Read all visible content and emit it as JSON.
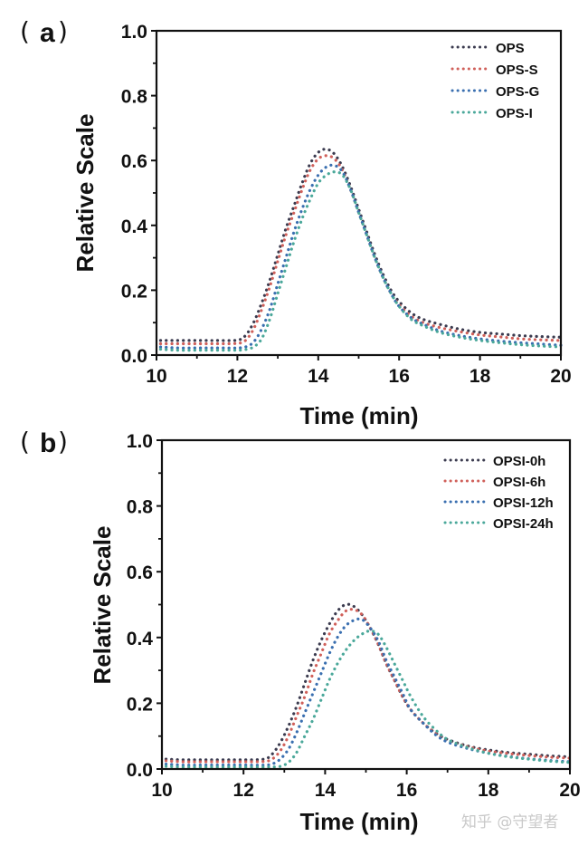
{
  "chart_data": [
    {
      "id": "a",
      "type": "line",
      "panel_label": "a",
      "title": "",
      "xlabel": "Time (min)",
      "ylabel": "Relative Scale",
      "xlim": [
        10,
        20
      ],
      "ylim": [
        0,
        1.0
      ],
      "xticks": [
        10,
        12,
        14,
        16,
        18,
        20
      ],
      "xtick_labels": [
        "10",
        "12",
        "14",
        "16",
        "18",
        "20"
      ],
      "yticks": [
        0,
        0.2,
        0.4,
        0.6,
        0.8,
        1.0
      ],
      "ytick_labels": [
        "0.0",
        "0.2",
        "0.4",
        "0.6",
        "0.8",
        "1.0"
      ],
      "grid": false,
      "legend_position": "top-right",
      "line_style": "dotted",
      "x": [
        10.1,
        10.5,
        11.0,
        11.5,
        12.0,
        12.2,
        12.4,
        12.6,
        12.8,
        13.0,
        13.2,
        13.4,
        13.6,
        13.8,
        14.0,
        14.2,
        14.4,
        14.6,
        14.8,
        15.0,
        15.2,
        15.4,
        15.6,
        15.8,
        16.0,
        16.3,
        16.6,
        17.0,
        17.5,
        18.0,
        18.5,
        19.0,
        19.5,
        20.0
      ],
      "series": [
        {
          "name": "OPS",
          "color": "#3b3b4f",
          "values": [
            0.045,
            0.045,
            0.045,
            0.045,
            0.046,
            0.06,
            0.1,
            0.16,
            0.23,
            0.31,
            0.39,
            0.46,
            0.53,
            0.59,
            0.625,
            0.635,
            0.62,
            0.58,
            0.52,
            0.45,
            0.38,
            0.31,
            0.25,
            0.2,
            0.165,
            0.13,
            0.11,
            0.095,
            0.08,
            0.07,
            0.065,
            0.06,
            0.057,
            0.055
          ]
        },
        {
          "name": "OPS-S",
          "color": "#d0605a",
          "values": [
            0.035,
            0.035,
            0.035,
            0.035,
            0.036,
            0.045,
            0.08,
            0.14,
            0.21,
            0.29,
            0.37,
            0.44,
            0.51,
            0.57,
            0.605,
            0.615,
            0.605,
            0.57,
            0.51,
            0.44,
            0.37,
            0.3,
            0.24,
            0.19,
            0.155,
            0.12,
            0.1,
            0.085,
            0.072,
            0.062,
            0.056,
            0.05,
            0.047,
            0.045
          ]
        },
        {
          "name": "OPS-G",
          "color": "#3a6fb0",
          "values": [
            0.025,
            0.022,
            0.022,
            0.022,
            0.022,
            0.025,
            0.04,
            0.08,
            0.14,
            0.22,
            0.3,
            0.38,
            0.45,
            0.51,
            0.555,
            0.58,
            0.585,
            0.565,
            0.51,
            0.44,
            0.37,
            0.3,
            0.24,
            0.19,
            0.15,
            0.115,
            0.095,
            0.075,
            0.06,
            0.05,
            0.043,
            0.038,
            0.034,
            0.03
          ]
        },
        {
          "name": "OPS-I",
          "color": "#4aa89a",
          "values": [
            0.018,
            0.015,
            0.015,
            0.015,
            0.015,
            0.017,
            0.025,
            0.05,
            0.11,
            0.19,
            0.27,
            0.35,
            0.42,
            0.48,
            0.53,
            0.555,
            0.565,
            0.555,
            0.51,
            0.44,
            0.37,
            0.3,
            0.24,
            0.19,
            0.15,
            0.11,
            0.09,
            0.07,
            0.055,
            0.045,
            0.038,
            0.032,
            0.028,
            0.025
          ]
        }
      ]
    },
    {
      "id": "b",
      "type": "line",
      "panel_label": "b",
      "title": "",
      "xlabel": "Time (min)",
      "ylabel": "Relative Scale",
      "xlim": [
        10,
        20
      ],
      "ylim": [
        0,
        1.0
      ],
      "xticks": [
        10,
        12,
        14,
        16,
        18,
        20
      ],
      "xtick_labels": [
        "10",
        "12",
        "14",
        "16",
        "18",
        "20"
      ],
      "yticks": [
        0,
        0.2,
        0.4,
        0.6,
        0.8,
        1.0
      ],
      "ytick_labels": [
        "0.0",
        "0.2",
        "0.4",
        "0.6",
        "0.8",
        "1.0"
      ],
      "grid": false,
      "legend_position": "top-right",
      "line_style": "dotted",
      "x": [
        10.1,
        10.5,
        11.0,
        11.5,
        12.0,
        12.5,
        12.7,
        12.9,
        13.1,
        13.3,
        13.5,
        13.7,
        13.9,
        14.1,
        14.3,
        14.5,
        14.7,
        14.9,
        15.1,
        15.3,
        15.5,
        15.7,
        15.9,
        16.1,
        16.4,
        16.7,
        17.0,
        17.5,
        18.0,
        18.5,
        19.0,
        19.5,
        20.0
      ],
      "series": [
        {
          "name": "OPSI-0h",
          "color": "#3b3b4f",
          "values": [
            0.03,
            0.028,
            0.028,
            0.028,
            0.028,
            0.03,
            0.045,
            0.08,
            0.13,
            0.19,
            0.26,
            0.33,
            0.39,
            0.44,
            0.48,
            0.5,
            0.495,
            0.47,
            0.43,
            0.38,
            0.32,
            0.27,
            0.22,
            0.18,
            0.14,
            0.11,
            0.09,
            0.07,
            0.058,
            0.05,
            0.045,
            0.04,
            0.037
          ]
        },
        {
          "name": "OPSI-6h",
          "color": "#d0605a",
          "values": [
            0.025,
            0.022,
            0.022,
            0.022,
            0.022,
            0.023,
            0.03,
            0.055,
            0.1,
            0.16,
            0.22,
            0.29,
            0.35,
            0.41,
            0.45,
            0.48,
            0.485,
            0.47,
            0.43,
            0.38,
            0.32,
            0.27,
            0.22,
            0.18,
            0.14,
            0.11,
            0.088,
            0.068,
            0.055,
            0.047,
            0.041,
            0.036,
            0.033
          ]
        },
        {
          "name": "OPSI-12h",
          "color": "#3a6fb0",
          "values": [
            0.015,
            0.012,
            0.012,
            0.012,
            0.012,
            0.012,
            0.015,
            0.03,
            0.06,
            0.11,
            0.17,
            0.23,
            0.29,
            0.35,
            0.4,
            0.435,
            0.452,
            0.455,
            0.43,
            0.39,
            0.33,
            0.28,
            0.23,
            0.18,
            0.14,
            0.105,
            0.082,
            0.062,
            0.048,
            0.038,
            0.031,
            0.026,
            0.022
          ]
        },
        {
          "name": "OPSI-24h",
          "color": "#4aa89a",
          "values": [
            0.008,
            0.006,
            0.006,
            0.006,
            0.006,
            0.006,
            0.006,
            0.008,
            0.02,
            0.05,
            0.1,
            0.15,
            0.21,
            0.27,
            0.32,
            0.36,
            0.39,
            0.41,
            0.42,
            0.41,
            0.37,
            0.32,
            0.27,
            0.22,
            0.16,
            0.12,
            0.09,
            0.065,
            0.048,
            0.037,
            0.03,
            0.024,
            0.02
          ]
        }
      ]
    }
  ],
  "panels": [
    {
      "open_paren": "(",
      "letter": "a",
      "close_paren": ")"
    },
    {
      "open_paren": "(",
      "letter": "b",
      "close_paren": ")"
    }
  ],
  "watermark": "知乎 @守望者"
}
